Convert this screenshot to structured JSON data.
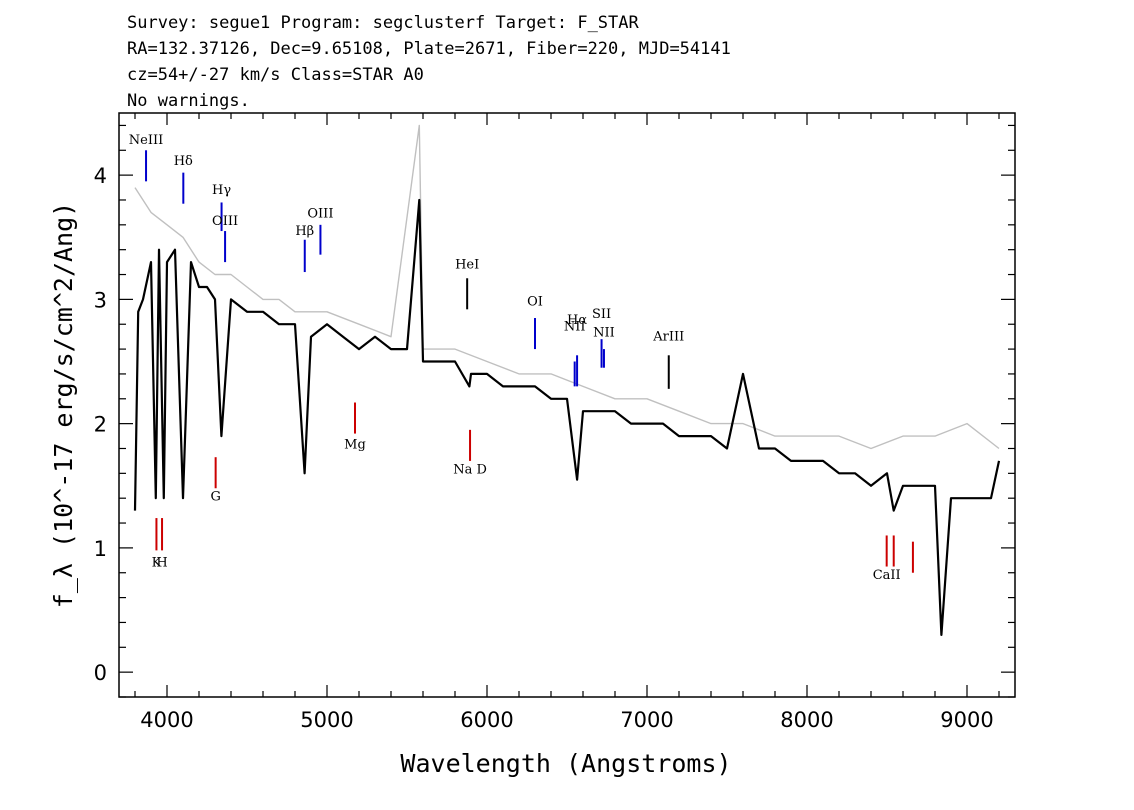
{
  "header": {
    "line1": "Survey: segue1 Program: segclusterf Target: F_STAR",
    "line2": "RA=132.37126, Dec=9.65108, Plate=2671, Fiber=220, MJD=54141",
    "line3": "cz=54+/-27 km/s Class=STAR A0",
    "line4": "No warnings."
  },
  "chart_data": {
    "type": "line",
    "xlabel": "Wavelength (Angstroms)",
    "ylabel": "f_λ (10^-17 erg/s/cm^2/Ang)",
    "xlim": [
      3700,
      9300
    ],
    "ylim": [
      -0.2,
      4.5
    ],
    "x_ticks": [
      4000,
      5000,
      6000,
      7000,
      8000,
      9000
    ],
    "y_ticks": [
      0,
      1,
      2,
      3,
      4
    ],
    "grid": false,
    "series": [
      {
        "color": "#000000",
        "x": [
          3800,
          3820,
          3850,
          3900,
          3930,
          3950,
          3980,
          4000,
          4050,
          4100,
          4150,
          4200,
          4250,
          4300,
          4340,
          4400,
          4500,
          4600,
          4700,
          4800,
          4860,
          4900,
          5000,
          5100,
          5200,
          5300,
          5400,
          5500,
          5577,
          5600,
          5700,
          5800,
          5890,
          5900,
          6000,
          6100,
          6200,
          6300,
          6400,
          6500,
          6563,
          6600,
          6700,
          6800,
          6900,
          7000,
          7100,
          7200,
          7300,
          7400,
          7500,
          7600,
          7700,
          7800,
          7900,
          8000,
          8100,
          8200,
          8300,
          8400,
          8500,
          8542,
          8600,
          8700,
          8800,
          8840,
          8900,
          9000,
          9100,
          9150,
          9200
        ],
        "y": [
          1.3,
          2.9,
          3.0,
          3.3,
          1.4,
          3.4,
          1.4,
          3.3,
          3.4,
          1.4,
          3.3,
          3.1,
          3.1,
          3.0,
          1.9,
          3.0,
          2.9,
          2.9,
          2.8,
          2.8,
          1.6,
          2.7,
          2.8,
          2.7,
          2.6,
          2.7,
          2.6,
          2.6,
          3.8,
          2.5,
          2.5,
          2.5,
          2.3,
          2.4,
          2.4,
          2.3,
          2.3,
          2.3,
          2.2,
          2.2,
          1.55,
          2.1,
          2.1,
          2.1,
          2.0,
          2.0,
          2.0,
          1.9,
          1.9,
          1.9,
          1.8,
          2.4,
          1.8,
          1.8,
          1.7,
          1.7,
          1.7,
          1.6,
          1.6,
          1.5,
          1.6,
          1.3,
          1.5,
          1.5,
          1.5,
          0.3,
          1.4,
          1.4,
          1.4,
          1.4,
          1.7
        ]
      },
      {
        "color": "#c0c0c0",
        "x": [
          3800,
          3900,
          4000,
          4100,
          4200,
          4300,
          4400,
          4500,
          4600,
          4700,
          4800,
          4900,
          5000,
          5200,
          5400,
          5577,
          5600,
          5800,
          6000,
          6200,
          6400,
          6600,
          6800,
          7000,
          7200,
          7400,
          7600,
          7800,
          8000,
          8200,
          8400,
          8600,
          8800,
          9000,
          9200
        ],
        "y": [
          3.9,
          3.7,
          3.6,
          3.5,
          3.3,
          3.2,
          3.2,
          3.1,
          3.0,
          3.0,
          2.9,
          2.9,
          2.9,
          2.8,
          2.7,
          4.4,
          2.6,
          2.6,
          2.5,
          2.4,
          2.4,
          2.3,
          2.2,
          2.2,
          2.1,
          2.0,
          2.0,
          1.9,
          1.9,
          1.9,
          1.8,
          1.9,
          1.9,
          2.0,
          1.8
        ]
      }
    ],
    "line_labels": [
      {
        "text": "NeIII",
        "x": 3869,
        "color": "#0000cc",
        "label_y": 4.25,
        "tick_top": 4.2,
        "tick_bottom": 3.95
      },
      {
        "text": "Hδ",
        "x": 4102,
        "color": "#0000cc",
        "label_y": 4.08,
        "tick_top": 4.02,
        "tick_bottom": 3.77
      },
      {
        "text": "Hγ",
        "x": 4341,
        "color": "#0000cc",
        "label_y": 3.85,
        "tick_top": 3.78,
        "tick_bottom": 3.55
      },
      {
        "text": "OIII",
        "x": 4363,
        "color": "#0000cc",
        "label_y": 3.6,
        "tick_top": 3.55,
        "tick_bottom": 3.3
      },
      {
        "text": "Hβ",
        "x": 4861,
        "color": "#0000cc",
        "label_y": 3.52,
        "tick_top": 3.48,
        "tick_bottom": 3.22
      },
      {
        "text": "OIII",
        "x": 4959,
        "color": "#0000cc",
        "label_y": 3.66,
        "tick_top": 3.6,
        "tick_bottom": 3.36
      },
      {
        "text": "HeI",
        "x": 5876,
        "color": "#000000",
        "label_y": 3.25,
        "tick_top": 3.17,
        "tick_bottom": 2.92
      },
      {
        "text": "OI",
        "x": 6300,
        "color": "#0000cc",
        "label_y": 2.95,
        "tick_top": 2.85,
        "tick_bottom": 2.6
      },
      {
        "text": "NII",
        "x": 6548,
        "color": "#0000cc",
        "label_y": 2.75,
        "tick_top": 2.5,
        "tick_bottom": 2.3
      },
      {
        "text": "Hα",
        "x": 6563,
        "color": "#0000cc",
        "label_y": 2.8,
        "tick_top": 2.55,
        "tick_bottom": 2.3
      },
      {
        "text": "SII",
        "x": 6716,
        "color": "#0000cc",
        "label_y": 2.85,
        "tick_top": 2.68,
        "tick_bottom": 2.45
      },
      {
        "text": "NII",
        "x": 6731,
        "color": "#0000cc",
        "label_y": 2.7,
        "tick_top": 2.6,
        "tick_bottom": 2.45
      },
      {
        "text": "ArIII",
        "x": 7136,
        "color": "#000000",
        "label_y": 2.67,
        "tick_top": 2.55,
        "tick_bottom": 2.28
      },
      {
        "text": "K",
        "x": 3934,
        "color": "#cc0000",
        "label_y": 0.85,
        "tick_top": 1.24,
        "tick_bottom": 0.98
      },
      {
        "text": "H",
        "x": 3969,
        "color": "#cc0000",
        "label_y": 0.85,
        "tick_top": 1.24,
        "tick_bottom": 0.98
      },
      {
        "text": "G",
        "x": 4304,
        "color": "#cc0000",
        "label_y": 1.38,
        "tick_top": 1.73,
        "tick_bottom": 1.48
      },
      {
        "text": "Mg",
        "x": 5175,
        "color": "#cc0000",
        "label_y": 1.8,
        "tick_top": 2.17,
        "tick_bottom": 1.92
      },
      {
        "text": "Na D",
        "x": 5894,
        "color": "#cc0000",
        "label_y": 1.6,
        "tick_top": 1.95,
        "tick_bottom": 1.7
      },
      {
        "text": "CaII",
        "x": 8498,
        "color": "#cc0000",
        "label_y": 0.75,
        "tick_top": 1.1,
        "tick_bottom": 0.85
      },
      {
        "text": "",
        "x": 8542,
        "color": "#cc0000",
        "label_y": 0,
        "tick_top": 1.1,
        "tick_bottom": 0.85
      },
      {
        "text": "",
        "x": 8662,
        "color": "#cc0000",
        "label_y": 0,
        "tick_top": 1.05,
        "tick_bottom": 0.8
      }
    ]
  }
}
